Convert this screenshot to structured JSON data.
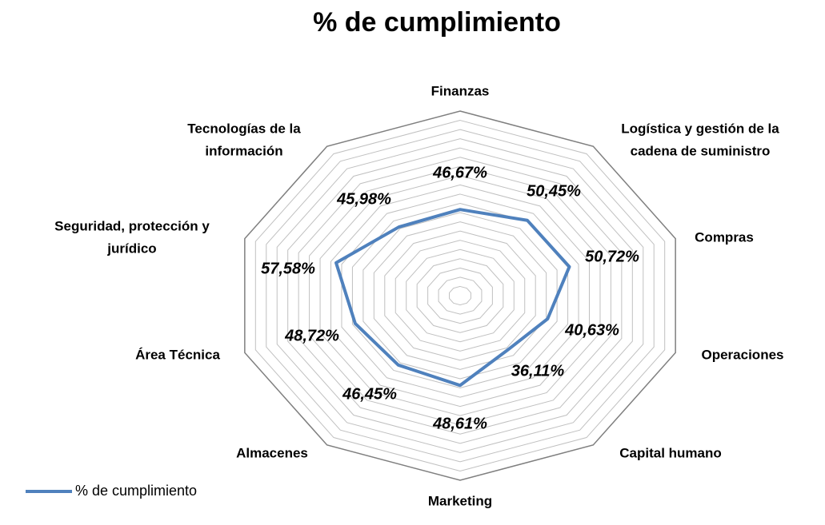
{
  "chart_data": {
    "type": "radar",
    "title": "% de cumplimiento",
    "categories": [
      [
        "Finanzas"
      ],
      [
        "Logística y gestión de la",
        "cadena de suministro"
      ],
      [
        "Compras"
      ],
      [
        "Operaciones"
      ],
      [
        "Capital humano"
      ],
      [
        "Marketing"
      ],
      [
        "Almacenes"
      ],
      [
        "Área Técnica"
      ],
      [
        "Seguridad, protección y",
        "jurídico"
      ],
      [
        "Tecnologías de la",
        "información"
      ]
    ],
    "series": [
      {
        "name": "% de cumplimiento",
        "color": "#4f81bd",
        "values": [
          46.67,
          50.45,
          50.72,
          40.63,
          36.11,
          48.61,
          46.45,
          48.72,
          57.58,
          45.98
        ],
        "value_labels": [
          "46,67%",
          "50,45%",
          "50,72%",
          "40,63%",
          "36,11%",
          "48,61%",
          "46,45%",
          "48,72%",
          "57,58%",
          "45,98%"
        ]
      }
    ],
    "ylim": [
      0,
      100
    ],
    "yticks": [
      0,
      5,
      10,
      15,
      20,
      25,
      30,
      35,
      40,
      45,
      50,
      55,
      60,
      65,
      70,
      75,
      80,
      85,
      90,
      95,
      100
    ],
    "grid": true,
    "legend": "bottom-left"
  }
}
